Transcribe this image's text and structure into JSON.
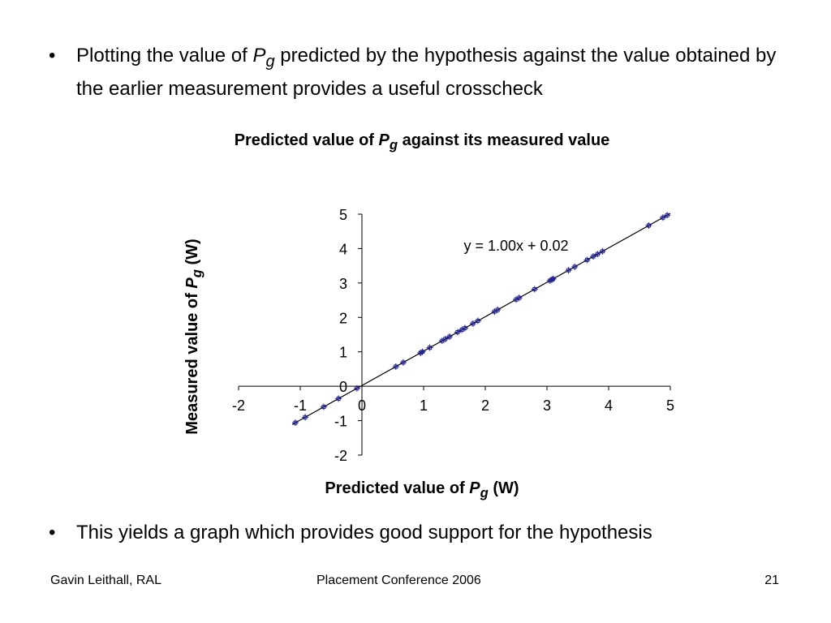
{
  "slide": {
    "bullet_1": {
      "marker": "•",
      "before": "Plotting the value of ",
      "symbol": "P",
      "subscript": "g",
      "after": " predicted by the hypothesis against the value obtained by the earlier measurement provides a useful crosscheck"
    },
    "bullet_2": {
      "marker": "•",
      "text": "This yields a graph which provides good support for the hypothesis"
    },
    "footer": {
      "left": "Gavin Leithall, RAL",
      "center": "Placement Conference 2006",
      "right": "21"
    }
  },
  "chart_data": {
    "type": "scatter",
    "title": {
      "before": "Predicted value of ",
      "symbol": "P",
      "subscript": "g",
      "after": " against its measured value"
    },
    "xlabel": {
      "before": "Predicted value of ",
      "symbol": "P",
      "subscript": "g",
      "after": " (W)"
    },
    "ylabel": {
      "before": "Measured value of ",
      "symbol": "P",
      "subscript": "g",
      "after": " (W)"
    },
    "xlim": [
      -2,
      5
    ],
    "ylim": [
      -2,
      5
    ],
    "xticks": [
      "-2",
      "-1",
      "0",
      "1",
      "2",
      "3",
      "4",
      "5"
    ],
    "yticks": [
      "-2",
      "-1",
      "0",
      "1",
      "2",
      "3",
      "4",
      "5"
    ],
    "grid": false,
    "legend": "none",
    "marker_color": "#1f1f8f",
    "trendline": {
      "slope": 1.0,
      "intercept": 0.02,
      "equation_label": "y = 1.00x + 0.02"
    },
    "x": [
      -1.08,
      -0.92,
      -0.62,
      -0.38,
      -0.08,
      0.55,
      0.67,
      0.95,
      0.98,
      1.1,
      1.3,
      1.35,
      1.42,
      1.55,
      1.62,
      1.67,
      1.8,
      1.88,
      2.15,
      2.2,
      2.5,
      2.55,
      2.8,
      3.05,
      3.08,
      3.1,
      3.35,
      3.45,
      3.65,
      3.75,
      3.82,
      3.9,
      4.65,
      4.88,
      4.95
    ],
    "y": [
      -1.06,
      -0.9,
      -0.6,
      -0.36,
      -0.06,
      0.57,
      0.69,
      0.97,
      1.0,
      1.12,
      1.32,
      1.37,
      1.44,
      1.57,
      1.64,
      1.69,
      1.82,
      1.9,
      2.17,
      2.22,
      2.52,
      2.57,
      2.82,
      3.07,
      3.1,
      3.12,
      3.37,
      3.47,
      3.67,
      3.77,
      3.84,
      3.92,
      4.67,
      4.9,
      4.97
    ]
  }
}
